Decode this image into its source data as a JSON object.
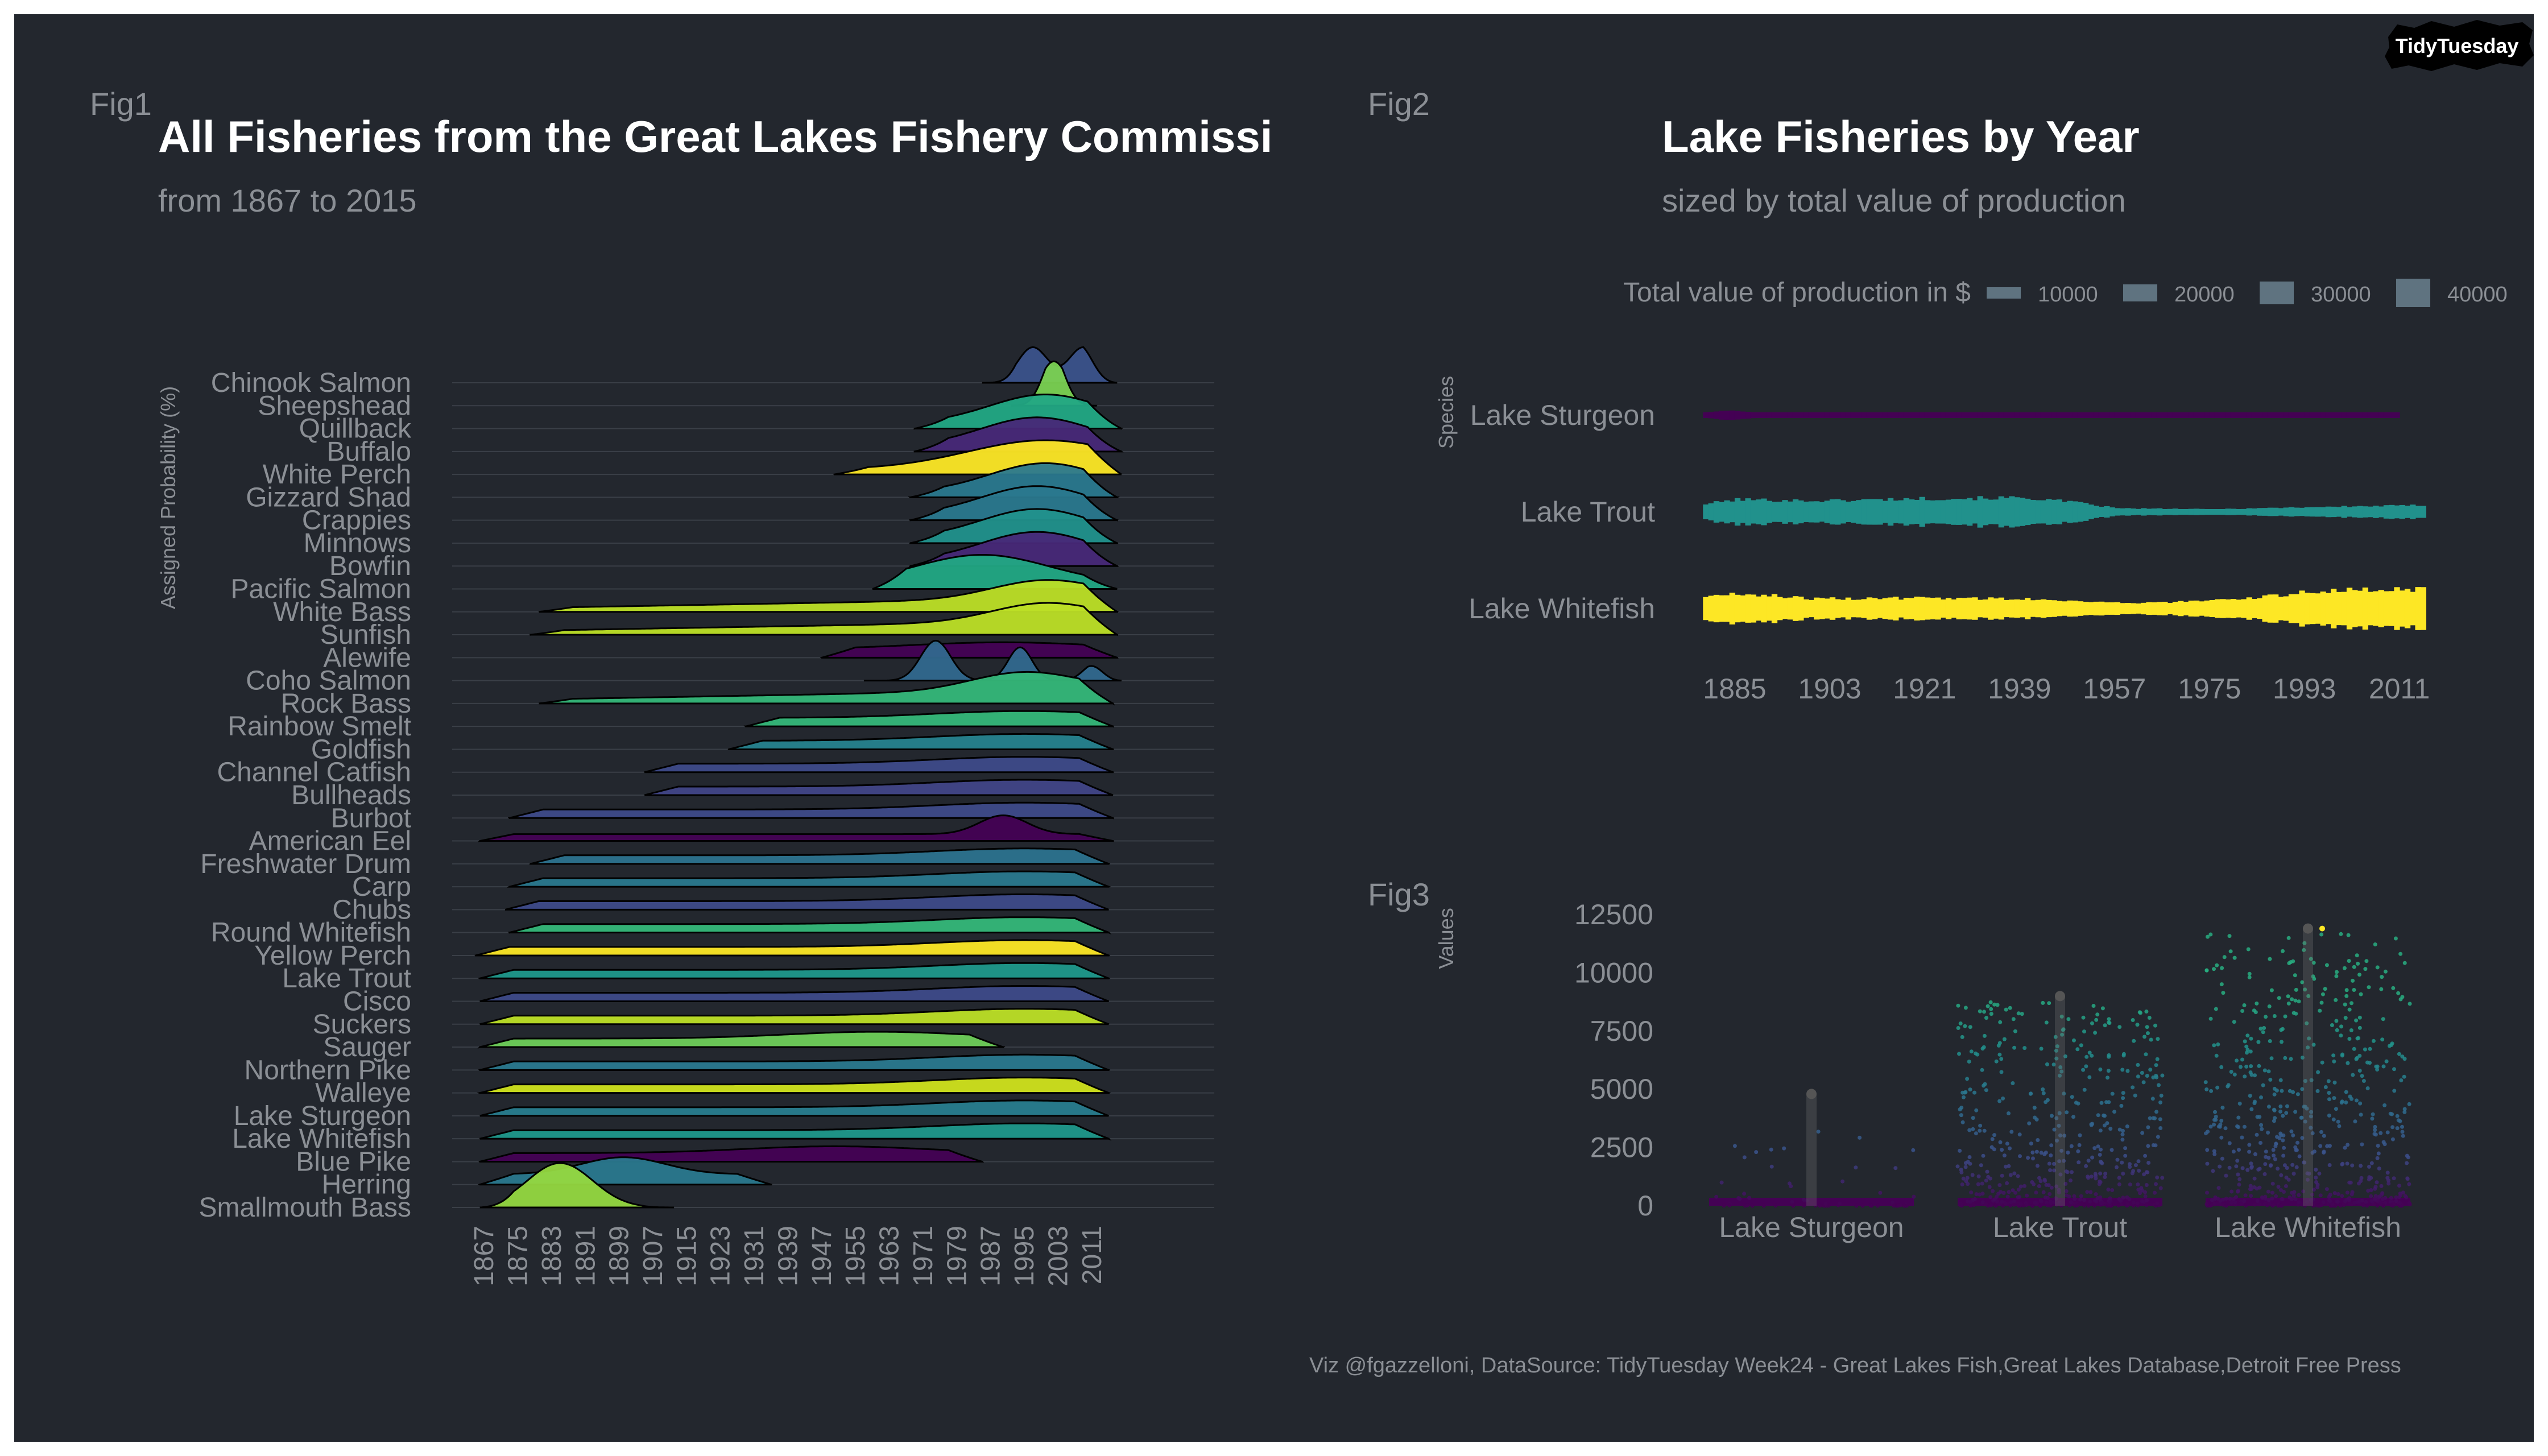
{
  "badge": "TidyTuesday",
  "fig1": {
    "tag": "Fig1",
    "title": "All Fisheries from the Great Lakes Fishery Commissi",
    "subtitle": "from 1867 to 2015",
    "ylabel": "Assigned Probability (%)"
  },
  "fig2": {
    "tag": "Fig2",
    "title": "Lake Fisheries by Year",
    "subtitle": "sized by total value of production",
    "legend_title": "Total value of production in $",
    "ylabel": "Species"
  },
  "fig3": {
    "tag": "Fig3",
    "ylabel": "Values"
  },
  "caption": "Viz @fgazzelloni, DataSource: TidyTuesday Week24 - Great Lakes Fish,Great Lakes Database,Detroit Free Press",
  "chart_data": [
    {
      "type": "ridgeline",
      "title": "All Fisheries from the Great Lakes Fishery Commissi",
      "subtitle": "from 1867 to 2015",
      "ylabel": "Assigned Probability (%)",
      "x_ticks": [
        1867,
        1875,
        1883,
        1891,
        1899,
        1907,
        1915,
        1923,
        1931,
        1939,
        1947,
        1955,
        1963,
        1971,
        1979,
        1987,
        1995,
        2003,
        2011
      ],
      "xlim": [
        1850,
        2040
      ],
      "series": [
        {
          "name": "Chinook Salmon",
          "start": 1985,
          "end": 2017,
          "peak": 2003,
          "shape": "bimodal",
          "color": "#3b528b"
        },
        {
          "name": "Sheepshead",
          "start": 1992,
          "end": 2012,
          "peak": 2002,
          "shape": "peak",
          "color": "#7ad151"
        },
        {
          "name": "Quillback",
          "start": 1969,
          "end": 2018,
          "peak": 2000,
          "shape": "rise",
          "color": "#22a884"
        },
        {
          "name": "Buffalo",
          "start": 1969,
          "end": 2018,
          "peak": 1998,
          "shape": "rise",
          "color": "#482878"
        },
        {
          "name": "White Perch",
          "start": 1950,
          "end": 2018,
          "peak": 2000,
          "shape": "rise",
          "color": "#fde725"
        },
        {
          "name": "Gizzard Shad",
          "start": 1968,
          "end": 2017,
          "peak": 2000,
          "shape": "rise",
          "color": "#2a788e"
        },
        {
          "name": "Crappies",
          "start": 1968,
          "end": 2017,
          "peak": 1998,
          "shape": "rise",
          "color": "#2a788e"
        },
        {
          "name": "Minnows",
          "start": 1968,
          "end": 2017,
          "peak": 1998,
          "shape": "rise",
          "color": "#21918c"
        },
        {
          "name": "Bowfin",
          "start": 1968,
          "end": 2017,
          "peak": 1998,
          "shape": "rise",
          "color": "#482878"
        },
        {
          "name": "Pacific Salmon",
          "start": 1959,
          "end": 2017,
          "peak": 1985,
          "shape": "rise",
          "color": "#22a884"
        },
        {
          "name": "White Bass",
          "start": 1880,
          "end": 2017,
          "peak": 2000,
          "shape": "long",
          "color": "#bddf26"
        },
        {
          "name": "Sunfish",
          "start": 1878,
          "end": 2017,
          "peak": 2000,
          "shape": "long",
          "color": "#bddf26"
        },
        {
          "name": "Alewife",
          "start": 1947,
          "end": 2017,
          "peak": 1990,
          "shape": "plateau",
          "color": "#440154"
        },
        {
          "name": "Coho Salmon",
          "start": 1957,
          "end": 2018,
          "peak": 1974,
          "shape": "multi",
          "color": "#31688e"
        },
        {
          "name": "Rock Bass",
          "start": 1880,
          "end": 2016,
          "peak": 1995,
          "shape": "long",
          "color": "#35b779"
        },
        {
          "name": "Rainbow Smelt",
          "start": 1929,
          "end": 2016,
          "peak": 1995,
          "shape": "plateau",
          "color": "#35b779"
        },
        {
          "name": "Goldfish",
          "start": 1925,
          "end": 2016,
          "peak": 1995,
          "shape": "plateau",
          "color": "#26828e"
        },
        {
          "name": "Channel Catfish",
          "start": 1905,
          "end": 2016,
          "peak": 1995,
          "shape": "plateau",
          "color": "#3e4a89"
        },
        {
          "name": "Bullheads",
          "start": 1905,
          "end": 2016,
          "peak": 1995,
          "shape": "plateau",
          "color": "#414487"
        },
        {
          "name": "Burbot",
          "start": 1873,
          "end": 2016,
          "peak": 1995,
          "shape": "plateau",
          "color": "#3e4a89"
        },
        {
          "name": "American Eel",
          "start": 1866,
          "end": 2016,
          "peak": 1990,
          "shape": "eel",
          "color": "#440154"
        },
        {
          "name": "Freshwater Drum",
          "start": 1878,
          "end": 2015,
          "peak": 1995,
          "shape": "plateau",
          "color": "#2c728e"
        },
        {
          "name": "Carp",
          "start": 1873,
          "end": 2015,
          "peak": 1995,
          "shape": "plateau",
          "color": "#2a788e"
        },
        {
          "name": "Chubs",
          "start": 1872,
          "end": 2015,
          "peak": 1995,
          "shape": "plateau",
          "color": "#3e4a89"
        },
        {
          "name": "Round Whitefish",
          "start": 1873,
          "end": 2015,
          "peak": 1995,
          "shape": "plateau",
          "color": "#35b779"
        },
        {
          "name": "Yellow Perch",
          "start": 1865,
          "end": 2015,
          "peak": 1995,
          "shape": "plateau",
          "color": "#fde725"
        },
        {
          "name": "Lake Trout",
          "start": 1866,
          "end": 2015,
          "peak": 1995,
          "shape": "plateau",
          "color": "#1f988b"
        },
        {
          "name": "Cisco",
          "start": 1866,
          "end": 2015,
          "peak": 1995,
          "shape": "plateau",
          "color": "#3e4a89"
        },
        {
          "name": "Suckers",
          "start": 1866,
          "end": 2015,
          "peak": 1995,
          "shape": "plateau",
          "color": "#bddf26"
        },
        {
          "name": "Sauger",
          "start": 1866,
          "end": 1990,
          "peak": 1960,
          "shape": "plateau",
          "color": "#6ece58"
        },
        {
          "name": "Northern Pike",
          "start": 1866,
          "end": 2015,
          "peak": 1995,
          "shape": "plateau",
          "color": "#2a788e"
        },
        {
          "name": "Walleye",
          "start": 1866,
          "end": 2015,
          "peak": 1995,
          "shape": "plateau",
          "color": "#d0e11c"
        },
        {
          "name": "Lake Sturgeon",
          "start": 1866,
          "end": 2015,
          "peak": 1995,
          "shape": "plateau",
          "color": "#287c8e"
        },
        {
          "name": "Lake Whitefish",
          "start": 1866,
          "end": 2015,
          "peak": 1995,
          "shape": "plateau",
          "color": "#1f988b"
        },
        {
          "name": "Blue Pike",
          "start": 1866,
          "end": 1985,
          "peak": 1950,
          "shape": "plateau",
          "color": "#440154"
        },
        {
          "name": "Herring",
          "start": 1866,
          "end": 1935,
          "peak": 1900,
          "shape": "early",
          "color": "#2a788e"
        },
        {
          "name": "Smallmouth Bass",
          "start": 1866,
          "end": 1912,
          "peak": 1885,
          "shape": "peak",
          "color": "#95d840"
        }
      ]
    },
    {
      "type": "line-width",
      "title": "Lake Fisheries by Year",
      "subtitle": "sized by total value of production",
      "legend_title": "Total value of production in $",
      "legend_values": [
        10000,
        20000,
        30000,
        40000
      ],
      "ylabel": "Species",
      "x_ticks": [
        1885,
        1903,
        1921,
        1939,
        1957,
        1975,
        1993,
        2011
      ],
      "xlim": [
        1878,
        2016
      ],
      "series": [
        {
          "name": "Lake Sturgeon",
          "color": "#440154",
          "start": 1879,
          "end": 2010,
          "size": [
            [
              1879,
              6000
            ],
            [
              1883,
              12000
            ],
            [
              1889,
              6000
            ],
            [
              1900,
              2500
            ],
            [
              1940,
              2000
            ],
            [
              1980,
              1500
            ],
            [
              2010,
              1500
            ]
          ]
        },
        {
          "name": "Lake Trout",
          "color": "#21918c",
          "start": 1879,
          "end": 2015,
          "size": [
            [
              1879,
              18000
            ],
            [
              1885,
              28000
            ],
            [
              1900,
              25000
            ],
            [
              1920,
              30000
            ],
            [
              1940,
              32000
            ],
            [
              1950,
              20000
            ],
            [
              1957,
              8000
            ],
            [
              1975,
              6000
            ],
            [
              1990,
              10000
            ],
            [
              2015,
              15000
            ]
          ]
        },
        {
          "name": "Lake Whitefish",
          "color": "#fde725",
          "start": 1879,
          "end": 2015,
          "size": [
            [
              1879,
              28000
            ],
            [
              1886,
              34000
            ],
            [
              1900,
              22000
            ],
            [
              1920,
              24000
            ],
            [
              1940,
              22000
            ],
            [
              1960,
              12000
            ],
            [
              1980,
              20000
            ],
            [
              1995,
              40000
            ],
            [
              2015,
              45000
            ]
          ]
        }
      ]
    },
    {
      "type": "scatter",
      "ylabel": "Values",
      "y_ticks": [
        0,
        2500,
        5000,
        7500,
        10000,
        12500
      ],
      "ylim": [
        0,
        13000
      ],
      "categories": [
        "Lake Sturgeon",
        "Lake Trout",
        "Lake Whitefish"
      ],
      "spread_max": [
        4800,
        9000,
        11900
      ],
      "point_counts": [
        60,
        520,
        620
      ]
    }
  ]
}
